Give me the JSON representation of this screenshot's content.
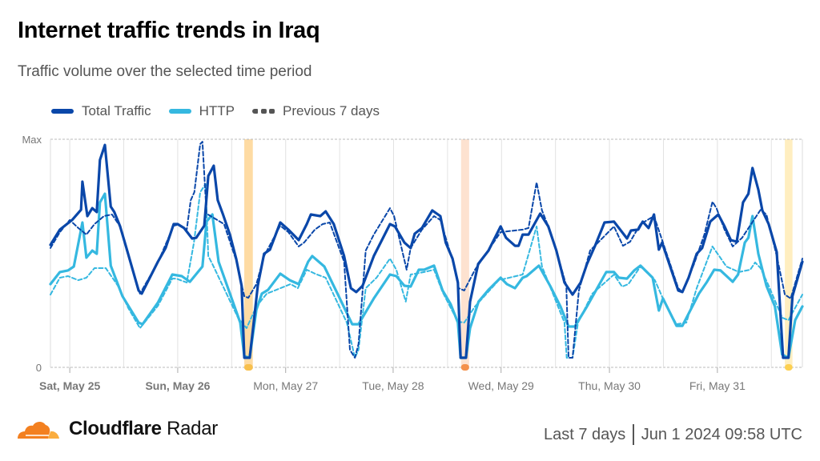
{
  "header": {
    "title": "Internet traffic trends in Iraq",
    "subtitle": "Traffic volume over the selected time period"
  },
  "legend": [
    {
      "label": "Total Traffic",
      "color": "#0a47a9",
      "style": "solid"
    },
    {
      "label": "HTTP",
      "color": "#35b8e0",
      "style": "solid"
    },
    {
      "label": "Previous 7 days",
      "color": "#555555",
      "style": "dashed"
    }
  ],
  "footer": {
    "brand_bold": "Cloudflare",
    "brand_light": "Radar",
    "range": "Last 7 days",
    "timestamp": "Jun 1 2024 09:58 UTC"
  },
  "chart_data": {
    "type": "line",
    "title": "Internet traffic trends in Iraq",
    "subtitle": "Traffic volume over the selected time period",
    "xlabel": "",
    "ylabel": "",
    "x_unit": "hours since start of window",
    "xlim": [
      0,
      167.2
    ],
    "ylim": [
      0,
      100
    ],
    "y_ticks": [
      {
        "value": 0,
        "label": "0"
      },
      {
        "value": 100,
        "label": "Max"
      }
    ],
    "x_ticks": [
      {
        "value": 4.3,
        "label": "Sat, May 25",
        "bold": true
      },
      {
        "value": 28.3,
        "label": "Sun, May 26",
        "bold": true
      },
      {
        "value": 52.3,
        "label": "Mon, May 27",
        "bold": false
      },
      {
        "value": 76.2,
        "label": "Tue, May 28",
        "bold": false
      },
      {
        "value": 100.2,
        "label": "Wed, May 29",
        "bold": false
      },
      {
        "value": 124.3,
        "label": "Thu, May 30",
        "bold": false
      },
      {
        "value": 148.3,
        "label": "Fri, May 31",
        "bold": false
      }
    ],
    "grid": true,
    "legend_position": "top-left",
    "annotations": [
      {
        "type": "band",
        "x_start": 43.1,
        "x_end": 45.0,
        "fill": "#fedba3",
        "marker": "#f8c04c"
      },
      {
        "type": "band",
        "x_start": 91.3,
        "x_end": 93.1,
        "fill": "#fde2d0",
        "marker": "#f4914c"
      },
      {
        "type": "band",
        "x_start": 163.3,
        "x_end": 165.0,
        "fill": "#ffeec0",
        "marker": "#fdd050"
      }
    ],
    "series": [
      {
        "name": "Previous 7 days (HTTP)",
        "color": "#35b8e0",
        "dashed": true,
        "x": [
          0,
          2.1,
          3.9,
          6.2,
          8.0,
          9.8,
          12.3,
          15.0,
          17.3,
          19.9,
          23.9,
          27.1,
          28.0,
          30.3,
          31.9,
          33.3,
          34.5,
          35.1,
          36.0,
          41.7,
          43.6,
          45.8,
          48.1,
          53.4,
          55.0,
          57.0,
          58.8,
          61.2,
          65.9,
          67.7,
          68.5,
          70.1,
          72.5,
          75.5,
          76.9,
          79.0,
          80.1,
          83.1,
          85.3,
          87.2,
          90.6,
          92.0,
          94.4,
          99.7,
          105.0,
          108.1,
          109.3,
          111.6,
          114.3,
          114.8,
          116.1,
          117.3,
          120.5,
          125.3,
          127.1,
          128.5,
          131.2,
          134.4,
          136.6,
          139.2,
          141.4,
          143.7,
          147.2,
          148.7,
          150.3,
          153.1,
          155.6,
          156.7,
          157.9,
          159.7,
          162.7,
          164.1,
          167.2
        ],
        "values": [
          31.9,
          39.3,
          40.0,
          38.2,
          39.3,
          43.5,
          43.5,
          35.8,
          26.0,
          17.2,
          27.0,
          38.9,
          38.9,
          37.2,
          54.7,
          76.8,
          80.4,
          48.8,
          45.3,
          21.8,
          17.2,
          26.7,
          32.3,
          36.5,
          34.7,
          42.8,
          41.1,
          39.3,
          19.6,
          4.2,
          7.7,
          34.7,
          39.3,
          47.7,
          42.8,
          28.8,
          40.7,
          41.8,
          42.8,
          33.0,
          20.0,
          19.6,
          26.7,
          38.2,
          40.7,
          61.8,
          44.2,
          33.0,
          19.6,
          4.2,
          4.2,
          19.6,
          32.3,
          40.7,
          35.4,
          36.5,
          44.2,
          38.2,
          28.4,
          18.9,
          19.6,
          34.7,
          53.0,
          48.8,
          44.2,
          41.8,
          42.8,
          46.0,
          43.5,
          35.8,
          21.8,
          20.7,
          31.9
        ]
      },
      {
        "name": "HTTP",
        "color": "#35b8e0",
        "dashed": false,
        "x": [
          0,
          2.1,
          3.9,
          5.2,
          7.1,
          8.0,
          9.3,
          10.3,
          11.0,
          12.1,
          13.4,
          16.0,
          19.6,
          20.5,
          23.9,
          27.1,
          29.2,
          31.0,
          33.8,
          34.7,
          36.0,
          37.4,
          42.2,
          43.1,
          44.3,
          45.8,
          47.0,
          48.4,
          51.1,
          53.2,
          55.2,
          57.3,
          58.2,
          60.9,
          64.1,
          67.1,
          68.5,
          71.9,
          75.5,
          76.9,
          78.7,
          80.1,
          81.9,
          83.1,
          85.3,
          87.2,
          89.0,
          90.6,
          91.2,
          92.4,
          93.3,
          95.2,
          97.4,
          100.1,
          101.5,
          103.3,
          105.0,
          105.9,
          108.6,
          111.1,
          113.4,
          115.2,
          116.6,
          119.3,
          123.6,
          125.3,
          126.4,
          128.2,
          129.8,
          131.2,
          133.9,
          135.3,
          136.2,
          139.2,
          140.5,
          144.2,
          146.0,
          147.6,
          149.0,
          151.7,
          152.9,
          154.4,
          155.2,
          156.1,
          157.4,
          159.2,
          161.1,
          162.7,
          164.1,
          165.6,
          167.2
        ],
        "values": [
          36.5,
          41.8,
          42.5,
          44.2,
          63.5,
          48.1,
          51.2,
          49.8,
          72.3,
          76.1,
          44.6,
          31.2,
          19.6,
          18.9,
          28.4,
          40.7,
          40.0,
          37.5,
          44.2,
          63.9,
          67.0,
          46.3,
          19.6,
          4.9,
          4.2,
          25.3,
          32.3,
          34.0,
          41.1,
          38.2,
          36.5,
          46.3,
          48.8,
          44.2,
          31.2,
          18.9,
          18.9,
          30.2,
          40.7,
          40.0,
          35.8,
          35.4,
          42.8,
          42.8,
          44.6,
          33.7,
          27.7,
          19.6,
          4.2,
          4.2,
          17.2,
          28.8,
          34.0,
          39.3,
          36.5,
          34.7,
          39.3,
          40.0,
          44.6,
          35.8,
          26.7,
          17.9,
          17.9,
          26.7,
          41.8,
          41.8,
          39.3,
          38.9,
          42.5,
          44.6,
          39.3,
          24.9,
          30.2,
          18.2,
          18.2,
          32.3,
          37.5,
          42.8,
          42.5,
          37.5,
          40.7,
          54.7,
          56.8,
          66.3,
          49.8,
          35.8,
          26.7,
          5.6,
          4.2,
          20.7,
          26.7
        ]
      },
      {
        "name": "Previous 7 days (Total Traffic)",
        "color": "#0a47a9",
        "dashed": true,
        "x": [
          0,
          2.1,
          4.3,
          6.2,
          8.0,
          9.8,
          11.9,
          13.7,
          15.5,
          16.9,
          19.9,
          23.9,
          27.4,
          28.3,
          30.3,
          31.2,
          32.0,
          33.3,
          33.8,
          34.7,
          36.5,
          38.6,
          41.3,
          43.1,
          44.0,
          45.8,
          47.5,
          51.1,
          52.9,
          55.2,
          56.4,
          58.8,
          60.5,
          62.1,
          65.3,
          66.6,
          67.7,
          68.5,
          70.1,
          71.9,
          75.5,
          76.4,
          77.8,
          79.2,
          80.1,
          82.6,
          85.3,
          86.7,
          89.4,
          90.8,
          92.0,
          94.4,
          100.1,
          105.0,
          106.3,
          108.1,
          109.3,
          110.7,
          112.5,
          114.7,
          115.2,
          116.1,
          117.5,
          120.0,
          125.3,
          127.3,
          128.9,
          131.2,
          134.2,
          136.2,
          139.6,
          140.5,
          143.1,
          145.4,
          147.2,
          148.1,
          149.9,
          151.7,
          153.8,
          155.8,
          157.9,
          159.2,
          161.5,
          163.3,
          164.6,
          167.2
        ],
        "values": [
          52.3,
          59.3,
          64.6,
          61.1,
          58.2,
          62.8,
          66.3,
          67.0,
          61.8,
          51.6,
          32.3,
          46.0,
          62.1,
          62.5,
          60.4,
          73.3,
          76.8,
          97.9,
          98.9,
          67.4,
          65.3,
          62.8,
          47.0,
          31.2,
          30.5,
          36.5,
          48.8,
          62.1,
          59.3,
          53.0,
          54.7,
          60.4,
          62.8,
          63.5,
          46.3,
          7.7,
          4.2,
          10.2,
          51.2,
          58.2,
          69.8,
          66.3,
          54.7,
          42.8,
          52.3,
          60.4,
          66.3,
          64.6,
          47.0,
          34.7,
          33.7,
          42.8,
          59.3,
          60.4,
          61.1,
          81.1,
          68.8,
          61.8,
          51.2,
          35.8,
          4.2,
          4.2,
          33.7,
          51.2,
          61.8,
          53.3,
          55.1,
          62.8,
          66.3,
          54.7,
          34.7,
          33.0,
          45.3,
          58.2,
          72.6,
          69.8,
          60.4,
          53.0,
          56.8,
          62.8,
          69.1,
          67.0,
          48.8,
          31.9,
          30.2,
          47.7
        ]
      },
      {
        "name": "Total Traffic",
        "color": "#0a47a9",
        "dashed": false,
        "x": [
          0,
          2.1,
          4.8,
          6.8,
          7.1,
          8.2,
          9.3,
          10.3,
          11.0,
          12.1,
          13.4,
          14.2,
          15.5,
          16.9,
          19.6,
          20.3,
          23.9,
          25.6,
          27.4,
          28.3,
          29.7,
          31.5,
          32.4,
          34.2,
          35.1,
          36.3,
          37.2,
          38.3,
          39.9,
          41.3,
          42.5,
          43.1,
          44.3,
          45.2,
          46.1,
          47.5,
          48.8,
          51.1,
          52.9,
          55.2,
          57.0,
          57.9,
          60.0,
          61.2,
          63.0,
          65.3,
          66.8,
          68.0,
          69.4,
          71.9,
          73.7,
          75.5,
          76.6,
          78.7,
          80.1,
          81.0,
          82.6,
          84.9,
          86.7,
          87.9,
          89.4,
          90.6,
          91.2,
          92.4,
          93.3,
          95.1,
          97.4,
          100.1,
          101.3,
          103.3,
          104.1,
          105.0,
          106.3,
          108.9,
          110.7,
          112.5,
          114.3,
          116.1,
          117.9,
          119.3,
          121.1,
          123.2,
          125.3,
          128.2,
          129.1,
          130.7,
          131.7,
          133.0,
          134.2,
          135.3,
          136.0,
          139.6,
          140.5,
          141.9,
          143.7,
          144.9,
          146.7,
          148.5,
          149.9,
          151.3,
          152.6,
          154.0,
          155.2,
          156.1,
          157.4,
          158.3,
          159.7,
          161.5,
          162.9,
          164.1,
          165.0,
          167.2
        ],
        "values": [
          53.7,
          60.4,
          64.6,
          69.1,
          81.4,
          66.3,
          69.8,
          68.1,
          90.9,
          97.5,
          70.5,
          68.1,
          61.8,
          52.3,
          33.7,
          32.3,
          46.3,
          52.3,
          62.8,
          62.8,
          61.1,
          56.5,
          56.8,
          62.1,
          83.9,
          88.4,
          73.3,
          67.4,
          58.2,
          47.7,
          35.8,
          4.2,
          4.2,
          19.6,
          35.8,
          49.8,
          51.6,
          63.5,
          60.4,
          55.8,
          62.8,
          67.0,
          66.3,
          68.4,
          62.8,
          48.8,
          34.7,
          33.0,
          35.8,
          48.8,
          55.8,
          62.8,
          61.8,
          54.7,
          52.3,
          58.6,
          61.1,
          68.8,
          66.3,
          54.7,
          47.7,
          37.2,
          4.2,
          4.2,
          28.8,
          45.3,
          51.2,
          61.8,
          56.8,
          53.3,
          53.3,
          58.2,
          58.2,
          67.4,
          61.8,
          51.2,
          37.2,
          31.9,
          37.2,
          45.3,
          53.3,
          63.5,
          63.9,
          56.5,
          60.0,
          60.4,
          63.9,
          61.1,
          67.0,
          51.6,
          54.7,
          33.7,
          33.0,
          39.3,
          49.8,
          52.3,
          63.9,
          67.0,
          61.8,
          55.8,
          55.1,
          72.3,
          76.1,
          87.4,
          77.9,
          68.8,
          62.8,
          50.5,
          4.2,
          4.2,
          31.2,
          46.3
        ]
      }
    ]
  }
}
